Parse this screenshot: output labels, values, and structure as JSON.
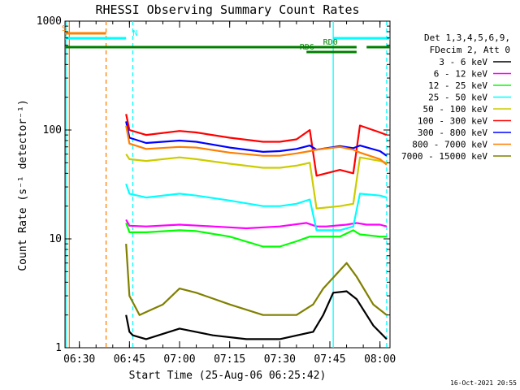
{
  "chart_data": {
    "type": "line",
    "title": "RHESSI Observing Summary Count Rates",
    "xlabel": "Start Time (25-Aug-06 06:25:42)",
    "ylabel": "Count Rate (s⁻¹ detector⁻¹)",
    "x_unit": "HH:MM",
    "xlim": [
      "06:25:42",
      "08:03:00"
    ],
    "x_ticks": [
      "06:30",
      "06:45",
      "07:00",
      "07:15",
      "07:30",
      "07:45",
      "08:00"
    ],
    "y_scale": "log",
    "ylim": [
      1,
      1000
    ],
    "y_ticks": [
      {
        "value": 1,
        "label": "1"
      },
      {
        "value": 10,
        "label": "10"
      },
      {
        "value": 100,
        "label": "100"
      },
      {
        "value": 1000,
        "label": "1000"
      }
    ],
    "legend_header": [
      "Det 1,3,4,5,6,9,",
      "FDecim 2, Att 0"
    ],
    "legend_position": "right",
    "footer": "16-Oct-2021 20:55",
    "series": [
      {
        "name": "3 - 6 keV",
        "color": "#000000",
        "x": [
          "06:44:00",
          "06:45:00",
          "06:46:00",
          "06:50:00",
          "07:00:00",
          "07:10:00",
          "07:20:00",
          "07:30:00",
          "07:40:00",
          "07:43:00",
          "07:46:00",
          "07:50:00",
          "07:53:00",
          "07:58:00",
          "08:02:00"
        ],
        "values": [
          2,
          1.4,
          1.3,
          1.2,
          1.5,
          1.3,
          1.2,
          1.2,
          1.4,
          2,
          3.2,
          3.3,
          2.8,
          1.6,
          1.2
        ]
      },
      {
        "name": "6 - 12 keV",
        "color": "#ff00ff",
        "x": [
          "06:44:00",
          "06:45:00",
          "06:50:00",
          "07:00:00",
          "07:10:00",
          "07:20:00",
          "07:30:00",
          "07:38:00",
          "07:41:00",
          "07:44:00",
          "07:50:00",
          "07:53:00",
          "07:56:00",
          "08:00:00",
          "08:02:00"
        ],
        "values": [
          15,
          13.2,
          13,
          13.5,
          13,
          12.5,
          13,
          14,
          13,
          13,
          13.5,
          14,
          13.5,
          13.5,
          13
        ]
      },
      {
        "name": "12 - 25 keV",
        "color": "#00ff00",
        "x": [
          "06:44:00",
          "06:45:00",
          "06:50:00",
          "07:00:00",
          "07:05:00",
          "07:15:00",
          "07:25:00",
          "07:30:00",
          "07:35:00",
          "07:39:00",
          "07:41:00",
          "07:48:00",
          "07:52:00",
          "07:54:00",
          "08:00:00",
          "08:02:00"
        ],
        "values": [
          14,
          11.5,
          11.5,
          12,
          11.8,
          10.5,
          8.5,
          8.5,
          9.5,
          10.5,
          10.5,
          10.5,
          12,
          11,
          10.5,
          10.5
        ]
      },
      {
        "name": "25 - 50 keV",
        "color": "#00ffff",
        "x": [
          "06:44:00",
          "06:45:00",
          "06:50:00",
          "07:00:00",
          "07:05:00",
          "07:15:00",
          "07:25:00",
          "07:30:00",
          "07:35:00",
          "07:39:00",
          "07:41:00",
          "07:48:00",
          "07:52:00",
          "07:54:00",
          "08:00:00",
          "08:02:00"
        ],
        "values": [
          32,
          26,
          24,
          26,
          25,
          22.5,
          20,
          20,
          21,
          23,
          12,
          12,
          13,
          26,
          25,
          24
        ]
      },
      {
        "name": "50 - 100 keV",
        "color": "#cccc00",
        "x": [
          "06:44:00",
          "06:45:00",
          "06:50:00",
          "07:00:00",
          "07:05:00",
          "07:15:00",
          "07:25:00",
          "07:30:00",
          "07:35:00",
          "07:39:00",
          "07:41:00",
          "07:48:00",
          "07:52:00",
          "07:54:00",
          "08:00:00",
          "08:02:00"
        ],
        "values": [
          60,
          54,
          52,
          56,
          54,
          49,
          45,
          45,
          47,
          50,
          19,
          20,
          21,
          56,
          52,
          50
        ]
      },
      {
        "name": "100 - 300 keV",
        "color": "#ff0000",
        "x": [
          "06:44:00",
          "06:45:00",
          "06:50:00",
          "07:00:00",
          "07:05:00",
          "07:15:00",
          "07:25:00",
          "07:30:00",
          "07:35:00",
          "07:39:00",
          "07:41:00",
          "07:48:00",
          "07:52:00",
          "07:54:00",
          "08:00:00",
          "08:02:00"
        ],
        "values": [
          140,
          100,
          90,
          98,
          95,
          85,
          78,
          78,
          82,
          100,
          38,
          43,
          40,
          110,
          95,
          90
        ]
      },
      {
        "name": "300 - 800 keV",
        "color": "#0000ff",
        "x": [
          "06:44:00",
          "06:45:00",
          "06:50:00",
          "07:00:00",
          "07:05:00",
          "07:15:00",
          "07:25:00",
          "07:30:00",
          "07:35:00",
          "07:39:00",
          "07:41:00",
          "07:48:00",
          "07:52:00",
          "07:54:00",
          "08:00:00",
          "08:02:00"
        ],
        "values": [
          120,
          85,
          76,
          80,
          78,
          69,
          63,
          64,
          67,
          72,
          66,
          71,
          68,
          72,
          64,
          58
        ]
      },
      {
        "name": "800 - 7000 keV",
        "color": "#ff7f00",
        "x": [
          "06:44:00",
          "06:45:00",
          "06:50:00",
          "07:00:00",
          "07:05:00",
          "07:15:00",
          "07:25:00",
          "07:30:00",
          "07:35:00",
          "07:39:00",
          "07:41:00",
          "07:48:00",
          "07:52:00",
          "07:54:00",
          "08:00:00",
          "08:02:00"
        ],
        "values": [
          110,
          75,
          67,
          70,
          69,
          62,
          58,
          58,
          61,
          64,
          66,
          70,
          66,
          62,
          54,
          48
        ]
      },
      {
        "name": "7000 - 15000 keV",
        "color": "#808000",
        "x": [
          "06:44:00",
          "06:45:00",
          "06:48:00",
          "06:55:00",
          "07:00:00",
          "07:05:00",
          "07:15:00",
          "07:25:00",
          "07:35:00",
          "07:40:00",
          "07:43:00",
          "07:50:00",
          "07:53:00",
          "07:58:00",
          "08:02:00"
        ],
        "values": [
          9,
          3,
          2,
          2.5,
          3.5,
          3.2,
          2.5,
          2,
          2,
          2.5,
          3.5,
          6,
          4.5,
          2.5,
          2
        ]
      }
    ],
    "status_bars": [
      {
        "label": "S",
        "color": "#ff7f00",
        "start": "06:25:42",
        "end": "06:38:00",
        "label_at": "06:25:42"
      },
      {
        "label": "N",
        "color": "#00ffff",
        "start": "06:25:42",
        "end": "06:44:00",
        "label_at": "06:45:00"
      },
      {
        "label": "N",
        "color": "#00ffff",
        "start": "07:46:00",
        "end": "08:03:00",
        "label_at": ""
      },
      {
        "label": "RD0",
        "color": "#008000",
        "start": "06:25:42",
        "end": "07:53:00",
        "label_at": "07:42:00"
      },
      {
        "label": "RD6",
        "color": "#008000",
        "start": "07:38:00",
        "end": "07:53:00",
        "label_at": "07:35:00"
      },
      {
        "label": "",
        "color": "#008000",
        "start": "07:56:00",
        "end": "08:03:00",
        "label_at": ""
      }
    ],
    "vertical_markers": [
      {
        "x": "06:26:00",
        "color": "#00ffff",
        "style": "solid"
      },
      {
        "x": "06:27:00",
        "color": "#ff7f00",
        "style": "solid"
      },
      {
        "x": "06:38:00",
        "color": "#ff7f00",
        "style": "dashed"
      },
      {
        "x": "06:46:00",
        "color": "#00ffff",
        "style": "dashed"
      },
      {
        "x": "07:46:00",
        "color": "#00ffff",
        "style": "solid"
      },
      {
        "x": "08:02:00",
        "color": "#00ffff",
        "style": "dashed"
      }
    ]
  }
}
